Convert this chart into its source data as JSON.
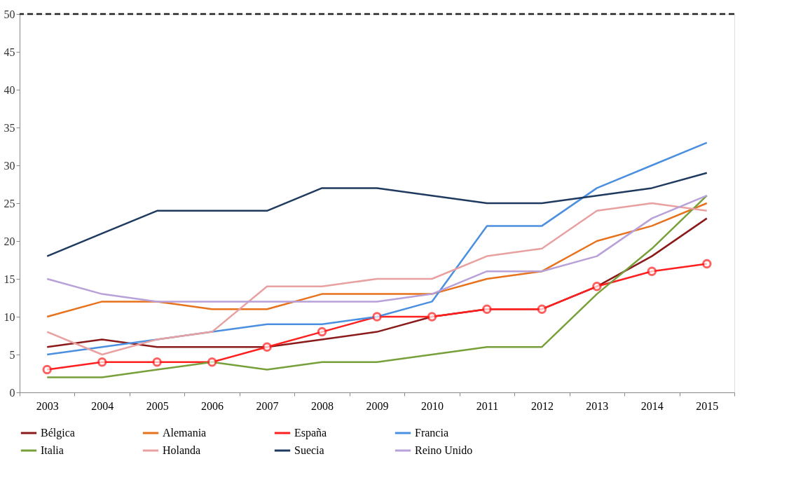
{
  "chart_data": {
    "type": "line",
    "categories": [
      "2003",
      "2004",
      "2005",
      "2006",
      "2007",
      "2008",
      "2009",
      "2010",
      "2011",
      "2012",
      "2013",
      "2014",
      "2015"
    ],
    "series": [
      {
        "name": "Bélgica",
        "color": "#8b1a1a",
        "marker": "none",
        "values": [
          6,
          7,
          6,
          6,
          6,
          7,
          8,
          10,
          11,
          11,
          14,
          18,
          23
        ]
      },
      {
        "name": "Alemania",
        "color": "#e8711c",
        "marker": "none",
        "values": [
          10,
          12,
          12,
          11,
          11,
          13,
          13,
          13,
          15,
          16,
          20,
          22,
          25
        ]
      },
      {
        "name": "España",
        "color": "#ff1f1f",
        "marker": "circle",
        "values": [
          3,
          4,
          4,
          4,
          6,
          8,
          10,
          10,
          11,
          11,
          14,
          16,
          17
        ]
      },
      {
        "name": "Francia",
        "color": "#4a8fe0",
        "marker": "none",
        "values": [
          5,
          6,
          7,
          8,
          9,
          9,
          10,
          12,
          22,
          22,
          27,
          30,
          33
        ]
      },
      {
        "name": "Italia",
        "color": "#77a03a",
        "marker": "none",
        "values": [
          2,
          2,
          3,
          4,
          3,
          4,
          4,
          5,
          6,
          6,
          13,
          19,
          26
        ]
      },
      {
        "name": "Holanda",
        "color": "#e8a0a0",
        "marker": "none",
        "values": [
          8,
          5,
          7,
          8,
          14,
          14,
          15,
          15,
          18,
          19,
          24,
          25,
          24
        ]
      },
      {
        "name": "Suecia",
        "color": "#1f3a5f",
        "marker": "none",
        "values": [
          18,
          21,
          24,
          24,
          24,
          27,
          27,
          26,
          25,
          25,
          26,
          27,
          29
        ]
      },
      {
        "name": "Reino Unido",
        "color": "#b8a0d8",
        "marker": "none",
        "values": [
          15,
          13,
          12,
          12,
          12,
          12,
          12,
          13,
          16,
          16,
          18,
          23,
          26
        ]
      }
    ],
    "ylim": [
      0,
      50
    ],
    "yticks": [
      0,
      5,
      10,
      15,
      20,
      25,
      30,
      35,
      40,
      45,
      50
    ],
    "ref_lines": [
      {
        "axis": "y",
        "value": 50,
        "color": "#222222",
        "line_style": "dashed"
      }
    ],
    "grid": false,
    "legend": "bottom",
    "line_style": "solid"
  }
}
